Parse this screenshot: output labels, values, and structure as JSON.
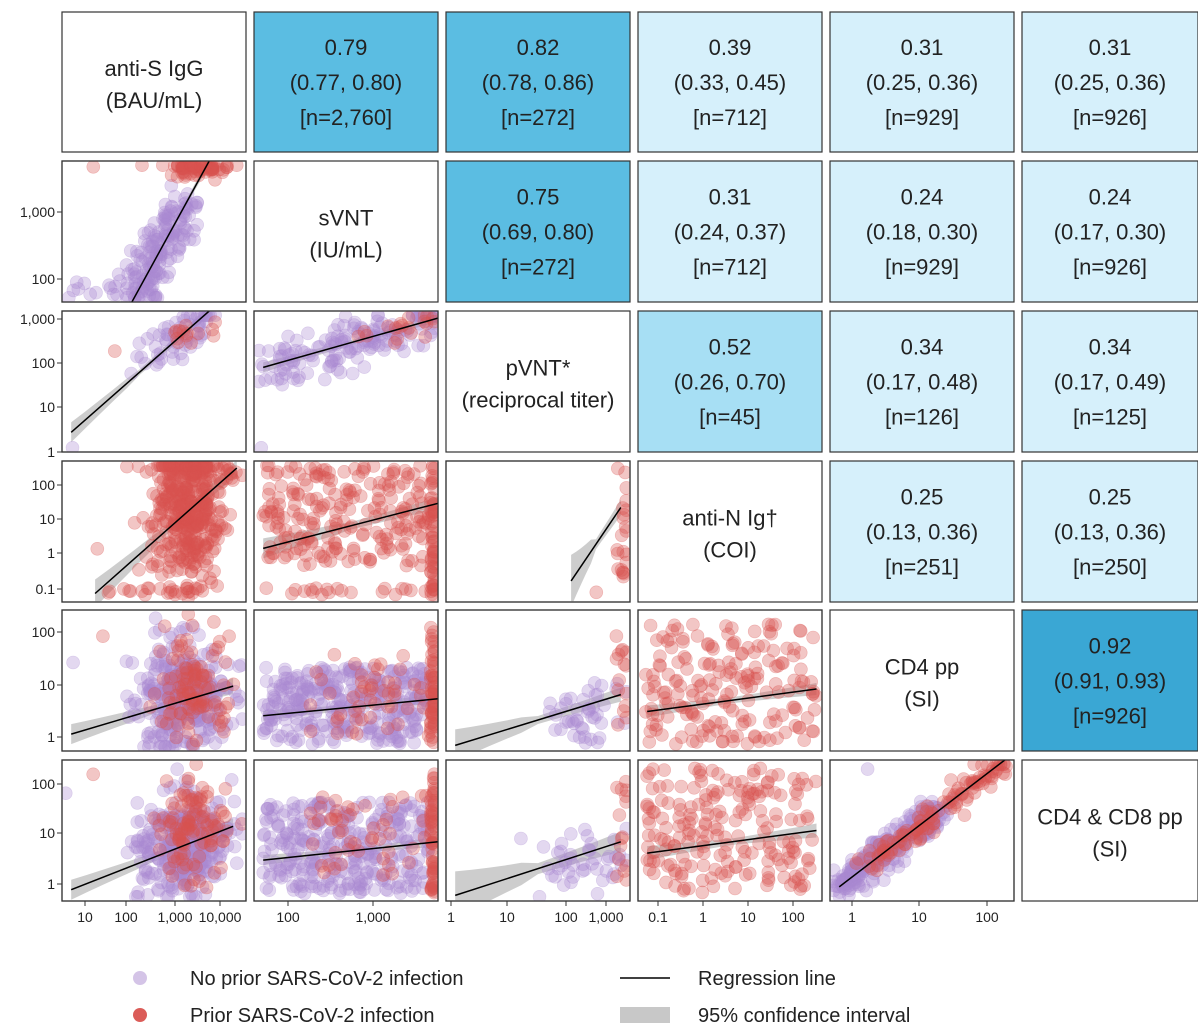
{
  "chart_data": {
    "type": "scatter",
    "variables": [
      {
        "label_lines": [
          "anti-S IgG",
          "(BAU/mL)"
        ],
        "ticks": [
          "10",
          "100",
          "1,000",
          "10,000"
        ]
      },
      {
        "label_lines": [
          "sVNT",
          "(IU/mL)"
        ],
        "ticks": [
          "100",
          "1,000"
        ]
      },
      {
        "label_lines": [
          "pVNT*",
          "(reciprocal titer)"
        ],
        "ticks": [
          "1",
          "10",
          "100",
          "1,000"
        ]
      },
      {
        "label_lines": [
          "anti-N Ig†",
          "(COI)"
        ],
        "ticks": [
          "0.1",
          "1",
          "10",
          "100"
        ]
      },
      {
        "label_lines": [
          "CD4 pp",
          "(SI)"
        ],
        "ticks": [
          "1",
          "10",
          "100"
        ]
      },
      {
        "label_lines": [
          "CD4 & CD8 pp",
          "(SI)"
        ],
        "ticks": [
          "1",
          "10",
          "100"
        ]
      }
    ],
    "row_y_ticks": [
      [],
      [
        "100",
        "1,000"
      ],
      [
        "1",
        "10",
        "100",
        "1,000"
      ],
      [
        "0.1",
        "1",
        "10",
        "100"
      ],
      [
        "1",
        "10",
        "100"
      ],
      [
        "1",
        "10",
        "100"
      ]
    ],
    "correlations": [
      {
        "row": 1,
        "col": 2,
        "r": "0.79",
        "ci": "(0.77, 0.80)",
        "n": "[n=2,760]"
      },
      {
        "row": 1,
        "col": 3,
        "r": "0.82",
        "ci": "(0.78, 0.86)",
        "n": "[n=272]"
      },
      {
        "row": 1,
        "col": 4,
        "r": "0.39",
        "ci": "(0.33, 0.45)",
        "n": "[n=712]"
      },
      {
        "row": 1,
        "col": 5,
        "r": "0.31",
        "ci": "(0.25, 0.36)",
        "n": "[n=929]"
      },
      {
        "row": 1,
        "col": 6,
        "r": "0.31",
        "ci": "(0.25, 0.36)",
        "n": "[n=926]"
      },
      {
        "row": 2,
        "col": 3,
        "r": "0.75",
        "ci": "(0.69, 0.80)",
        "n": "[n=272]"
      },
      {
        "row": 2,
        "col": 4,
        "r": "0.31",
        "ci": "(0.24, 0.37)",
        "n": "[n=712]"
      },
      {
        "row": 2,
        "col": 5,
        "r": "0.24",
        "ci": "(0.18, 0.30)",
        "n": "[n=929]"
      },
      {
        "row": 2,
        "col": 6,
        "r": "0.24",
        "ci": "(0.17, 0.30)",
        "n": "[n=926]"
      },
      {
        "row": 3,
        "col": 4,
        "r": "0.52",
        "ci": "(0.26, 0.70)",
        "n": "[n=45]"
      },
      {
        "row": 3,
        "col": 5,
        "r": "0.34",
        "ci": "(0.17, 0.48)",
        "n": "[n=126]"
      },
      {
        "row": 3,
        "col": 6,
        "r": "0.34",
        "ci": "(0.17, 0.49)",
        "n": "[n=125]"
      },
      {
        "row": 4,
        "col": 5,
        "r": "0.25",
        "ci": "(0.13, 0.36)",
        "n": "[n=251]"
      },
      {
        "row": 4,
        "col": 6,
        "r": "0.25",
        "ci": "(0.13, 0.36)",
        "n": "[n=250]"
      },
      {
        "row": 5,
        "col": 6,
        "r": "0.92",
        "ci": "(0.91, 0.93)",
        "n": "[n=926]"
      }
    ],
    "legend": [
      {
        "symbol": "dot",
        "color": "#a98ad0",
        "label": "No prior SARS-CoV-2 infection"
      },
      {
        "symbol": "dot",
        "color": "#d9534f",
        "label": "Prior SARS-CoV-2 infection"
      },
      {
        "symbol": "line",
        "color": "#000000",
        "label": "Regression line"
      },
      {
        "symbol": "band",
        "color": "#c8c8c8",
        "label": "95% confidence interval"
      }
    ],
    "colors": {
      "no_prior": "#a98ad0",
      "prior": "#d9534f",
      "regression": "#000000",
      "ci_band": "#c8c8c8",
      "corr_strong": "#3aa7d4",
      "corr_mid_high": "#5bbde2",
      "corr_mid": "#a7dff4",
      "corr_low": "#d6f0fb"
    }
  }
}
